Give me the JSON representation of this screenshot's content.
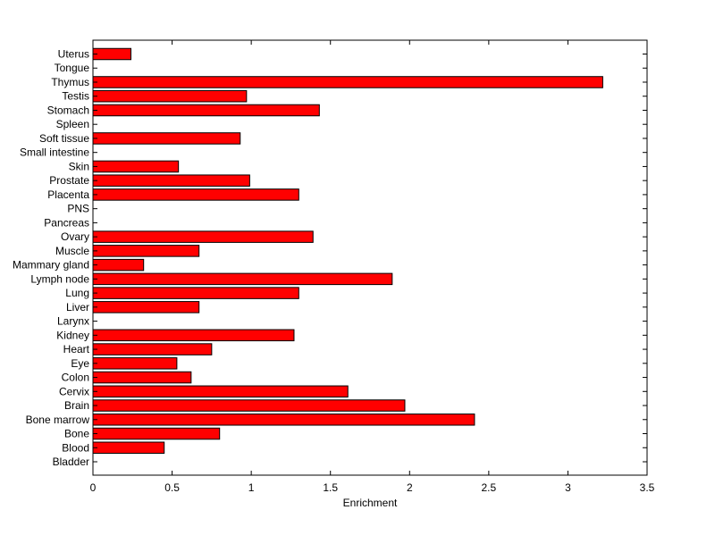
{
  "chart_data": {
    "type": "bar",
    "orientation": "horizontal",
    "xlabel": "Enrichment",
    "ylabel": "",
    "xlim": [
      0,
      3.5
    ],
    "xticks": [
      "0",
      "0.5",
      "1",
      "1.5",
      "2",
      "2.5",
      "3",
      "3.5"
    ],
    "grid": false,
    "bar_color": "#ff0000",
    "edge_color": "#000000",
    "categories": [
      "Uterus",
      "Tongue",
      "Thymus",
      "Testis",
      "Stomach",
      "Spleen",
      "Soft tissue",
      "Small intestine",
      "Skin",
      "Prostate",
      "Placenta",
      "PNS",
      "Pancreas",
      "Ovary",
      "Muscle",
      "Mammary gland",
      "Lymph node",
      "Lung",
      "Liver",
      "Larynx",
      "Kidney",
      "Heart",
      "Eye",
      "Colon",
      "Cervix",
      "Brain",
      "Bone marrow",
      "Bone",
      "Blood",
      "Bladder"
    ],
    "values": [
      0.24,
      0,
      3.22,
      0.97,
      1.43,
      0,
      0.93,
      0,
      0.54,
      0.99,
      1.3,
      0,
      0,
      1.39,
      0.67,
      0.32,
      1.89,
      1.3,
      0.67,
      0,
      1.27,
      0.75,
      0.53,
      0.62,
      1.61,
      1.97,
      2.41,
      0.8,
      0.45,
      0
    ]
  }
}
